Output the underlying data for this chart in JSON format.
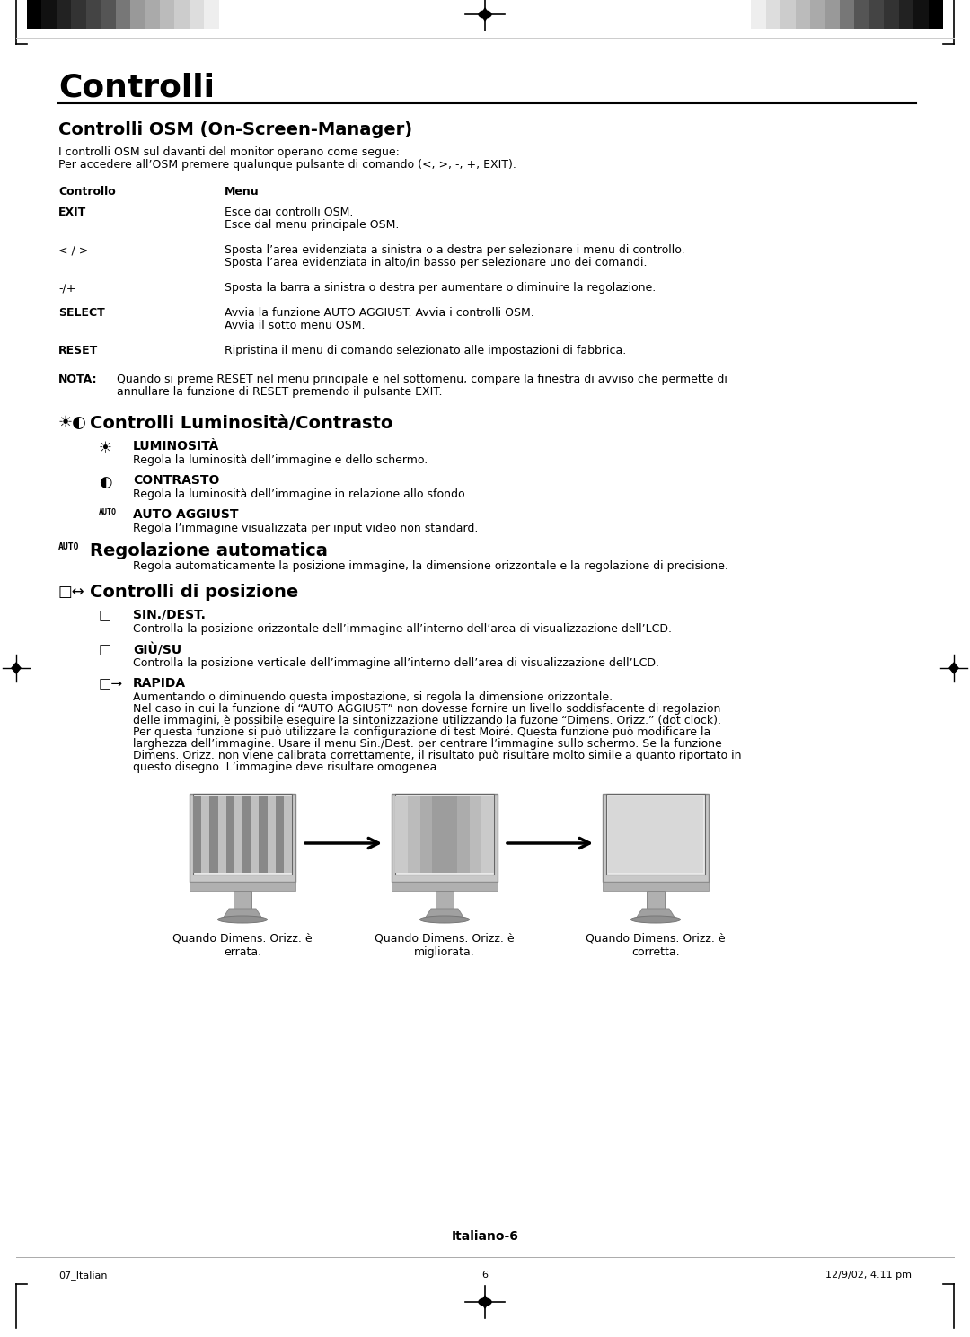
{
  "bg_color": "#ffffff",
  "title": "Controlli",
  "osm_title": "Controlli OSM (On-Screen-Manager)",
  "osm_intro": [
    "I controlli OSM sul davanti del monitor operano come segue:",
    "Per accedere all’OSM premere qualunque pulsante di comando (<, >, -, +, EXIT)."
  ],
  "table_headers": [
    "Controllo",
    "Menu"
  ],
  "table_rows": [
    {
      "key": "EXIT",
      "bold": true,
      "values": [
        "Esce dai controlli OSM.",
        "Esce dal menu principale OSM."
      ]
    },
    {
      "key": "< / >",
      "bold": false,
      "values": [
        "Sposta l’area evidenziata a sinistra o a destra per selezionare i menu di controllo.",
        "Sposta l’area evidenziata in alto/in basso per selezionare uno dei comandi."
      ]
    },
    {
      "key": "-/+",
      "bold": false,
      "values": [
        "Sposta la barra a sinistra o destra per aumentare o diminuire la regolazione."
      ]
    },
    {
      "key": "SELECT",
      "bold": true,
      "values": [
        "Avvia la funzione AUTO AGGIUST. Avvia i controlli OSM.",
        "Avvia il sotto menu OSM."
      ]
    },
    {
      "key": "RESET",
      "bold": true,
      "values": [
        "Ripristina il menu di comando selezionato alle impostazioni di fabbrica."
      ]
    }
  ],
  "nota_label": "NOTA:",
  "nota_text": "Quando si preme RESET nel menu principale e nel sottomenu, compare la finestra di avviso che permette di\nannullare la funzione di RESET premendo il pulsante EXIT.",
  "lum_title": "Controlli Luminosità/Contrasto",
  "lum_items": [
    {
      "title": "LUMINOSITÀ",
      "desc": "Regola la luminosità dell’immagine e dello schermo."
    },
    {
      "title": "CONTRASTO",
      "desc": "Regola la luminosità dell’immagine in relazione allo sfondo."
    },
    {
      "title": "AUTO AGGIUST",
      "desc": "Regola l’immagine visualizzata per input video non standard."
    }
  ],
  "reg_title": "Regolazione automatica",
  "reg_desc": "Regola automaticamente la posizione immagine, la dimensione orizzontale e la regolazione di precisione.",
  "pos_title": "Controlli di posizione",
  "pos_items": [
    {
      "title": "SIN./DEST.",
      "desc": "Controlla la posizione orizzontale dell’immagine all’interno dell’area di visualizzazione dell’LCD."
    },
    {
      "title": "GIÙ/SU",
      "desc": "Controlla la posizione verticale dell’immagine all’interno dell’area di visualizzazione dell’LCD."
    },
    {
      "title": "RAPIDA",
      "desc_lines": [
        "Aumentando o diminuendo questa impostazione, si regola la dimensione orizzontale.",
        "Nel caso in cui la funzione di “AUTO AGGIUST” non dovesse fornire un livello soddisfacente di regolazion",
        "delle immagini, è possibile eseguire la sintonizzazione utilizzando la fuzone “Dimens. Orizz.” (dot clock).",
        "Per questa funzione si può utilizzare la configurazione di test Moiré. Questa funzione può modificare la",
        "larghezza dell’immagine. Usare il menu Sin./Dest. per centrare l’immagine sullo schermo. Se la funzione",
        "Dimens. Orizz. non viene calibrata correttamente, il risultato può risultare molto simile a quanto riportato in",
        "questo disegno. L’immagine deve risultare omogenea."
      ]
    }
  ],
  "monitor_labels": [
    "Quando Dimens. Orizz. è\nerrata.",
    "Quando Dimens. Orizz. è\nmigliorata.",
    "Quando Dimens. Orizz. è\ncorretta."
  ],
  "footer_left": "07_Italian",
  "footer_center": "6",
  "footer_right": "12/9/02, 4.11 pm",
  "footer_label": "Italiano-6",
  "color_bars_left": [
    "#000000",
    "#111111",
    "#222222",
    "#333333",
    "#444444",
    "#555555",
    "#777777",
    "#999999",
    "#aaaaaa",
    "#bbbbbb",
    "#cccccc",
    "#dddddd",
    "#eeeeee",
    "#ffffff"
  ],
  "color_bars_right": [
    "#ffffff",
    "#eeeeee",
    "#dddddd",
    "#cccccc",
    "#bbbbbb",
    "#aaaaaa",
    "#999999",
    "#777777",
    "#555555",
    "#444444",
    "#333333",
    "#222222",
    "#111111",
    "#000000"
  ]
}
